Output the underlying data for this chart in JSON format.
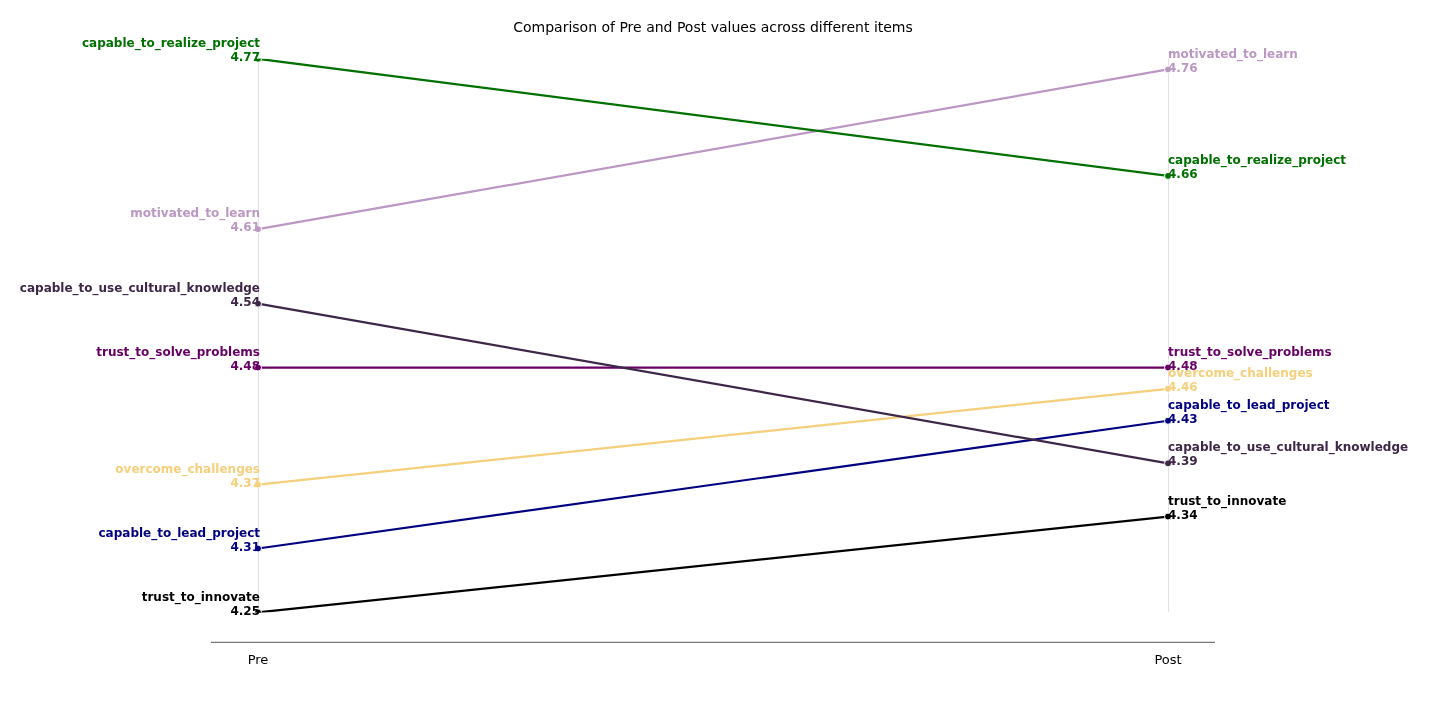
{
  "chart_data": {
    "type": "line",
    "title": "Comparison of Pre and Post values across different items",
    "categories": [
      "Pre",
      "Post"
    ],
    "series": [
      {
        "name": "capable_to_realize_project",
        "color": "#007000",
        "values": [
          4.77,
          4.66
        ]
      },
      {
        "name": "motivated_to_learn",
        "color": "#bb97c4",
        "values": [
          4.61,
          4.76
        ]
      },
      {
        "name": "capable_to_use_cultural_knowledge",
        "color": "#3d2748",
        "values": [
          4.54,
          4.39
        ]
      },
      {
        "name": "trust_to_solve_problems",
        "color": "#660066",
        "values": [
          4.48,
          4.48
        ]
      },
      {
        "name": "overcome_challenges",
        "color": "#f5cf7b",
        "values": [
          4.37,
          4.46
        ]
      },
      {
        "name": "capable_to_lead_project",
        "color": "#000080",
        "values": [
          4.31,
          4.43
        ]
      },
      {
        "name": "trust_to_innovate",
        "color": "#000000",
        "values": [
          4.25,
          4.34
        ]
      }
    ],
    "data_labels": true,
    "grid": "x",
    "legend": false,
    "marker": "circle",
    "line_style": "solid"
  }
}
